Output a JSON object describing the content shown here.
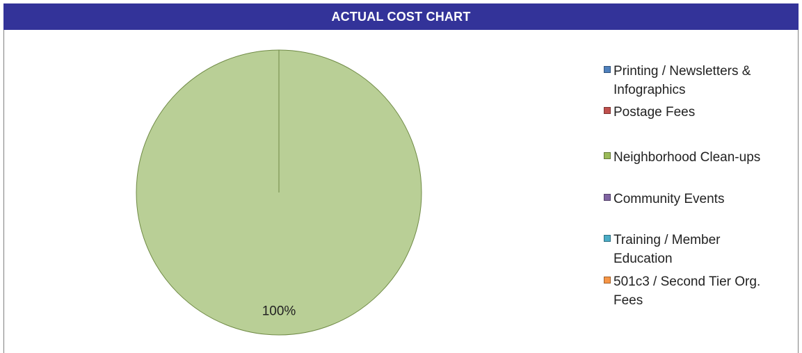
{
  "chart_title": "ACTUAL COST CHART",
  "colors": {
    "title_bg": "#333399",
    "title_text": "#ffffff"
  },
  "chart_data": {
    "type": "pie",
    "title": "ACTUAL COST CHART",
    "categories": [
      "Printing / Newsletters & Infographics",
      "Postage Fees",
      "Neighborhood Clean-ups",
      "Community Events",
      "Training / Member Education",
      "501c3 / Second Tier Org. Fees"
    ],
    "values": [
      0,
      0,
      100,
      0,
      0,
      0
    ],
    "colors": [
      "#4f81bd",
      "#c0504d",
      "#9bbb59",
      "#8064a2",
      "#4bacc6",
      "#f79646"
    ],
    "slice_fill": "#b9cf96",
    "slice_edge": "#6f8a45",
    "data_labels": [
      "",
      "",
      "100%",
      "",
      "",
      ""
    ],
    "legend_position": "right"
  },
  "legend": {
    "items": [
      {
        "line1": "Printing / Newsletters &",
        "line2": "Infographics",
        "color": "#4f81bd"
      },
      {
        "line1": "Postage Fees",
        "line2": "",
        "color": "#c0504d"
      },
      {
        "line1": "Neighborhood Clean-ups",
        "line2": "",
        "color": "#9bbb59"
      },
      {
        "line1": "Community Events",
        "line2": "",
        "color": "#8064a2"
      },
      {
        "line1": "Training / Member",
        "line2": "Education",
        "color": "#4bacc6"
      },
      {
        "line1": "501c3 / Second Tier Org.",
        "line2": "Fees",
        "color": "#f79646"
      }
    ]
  }
}
